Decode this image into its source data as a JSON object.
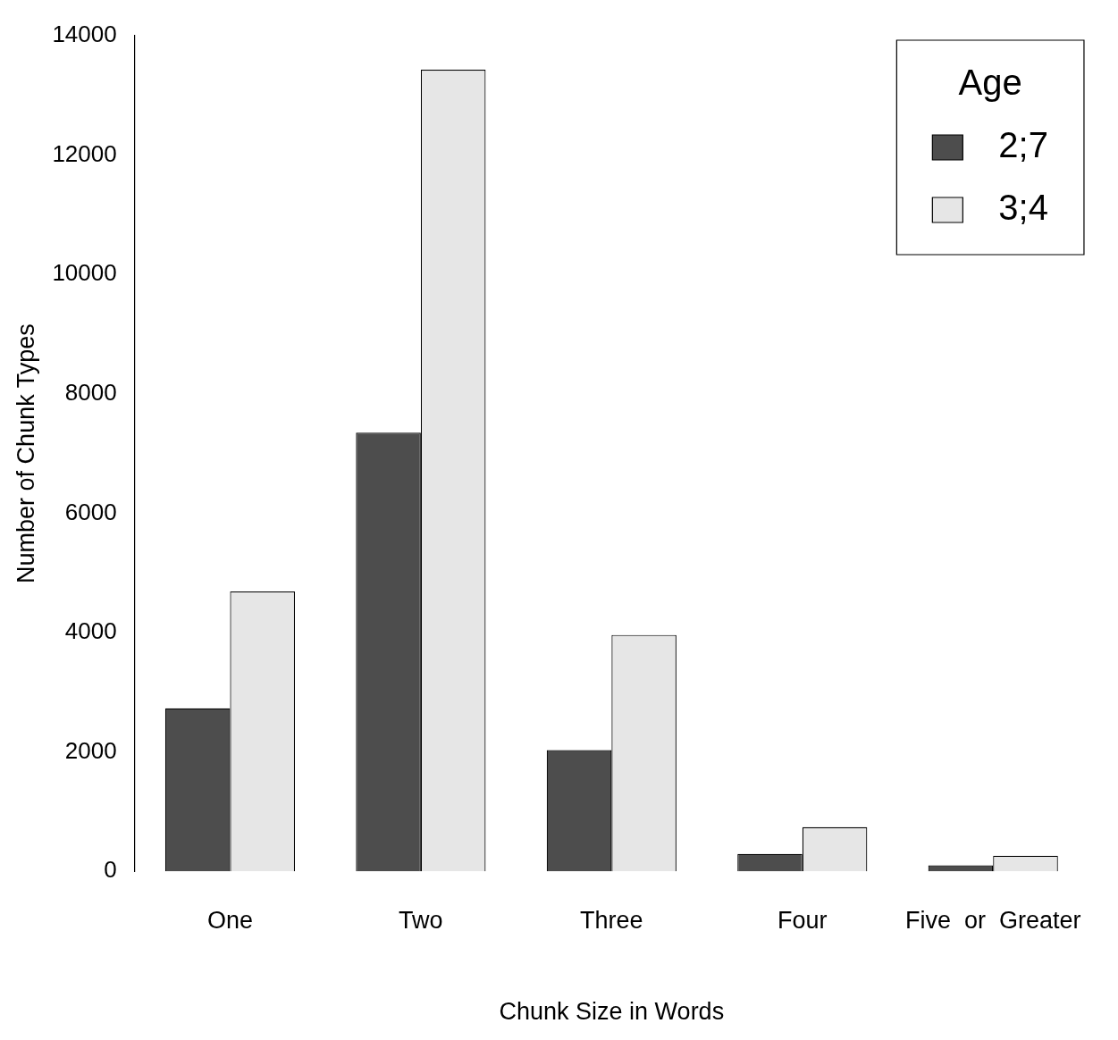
{
  "chart_data": {
    "type": "bar",
    "xlabel": "Chunk Size in Words",
    "ylabel": "Number of Chunk Types",
    "legend_title": "Age",
    "categories": [
      "One",
      "Two",
      "Three",
      "Four",
      "Five  or  Greater"
    ],
    "series": [
      {
        "name": "2;7",
        "color": "#4d4d4d",
        "values": [
          2730,
          7350,
          2030,
          290,
          100
        ]
      },
      {
        "name": "3;4",
        "color": "#e6e6e6",
        "values": [
          4690,
          13430,
          3960,
          740,
          260
        ]
      }
    ],
    "ylim": [
      0,
      14000
    ],
    "yticks": [
      0,
      2000,
      4000,
      6000,
      8000,
      10000,
      12000,
      14000
    ],
    "grid": false,
    "legend": "top right"
  }
}
